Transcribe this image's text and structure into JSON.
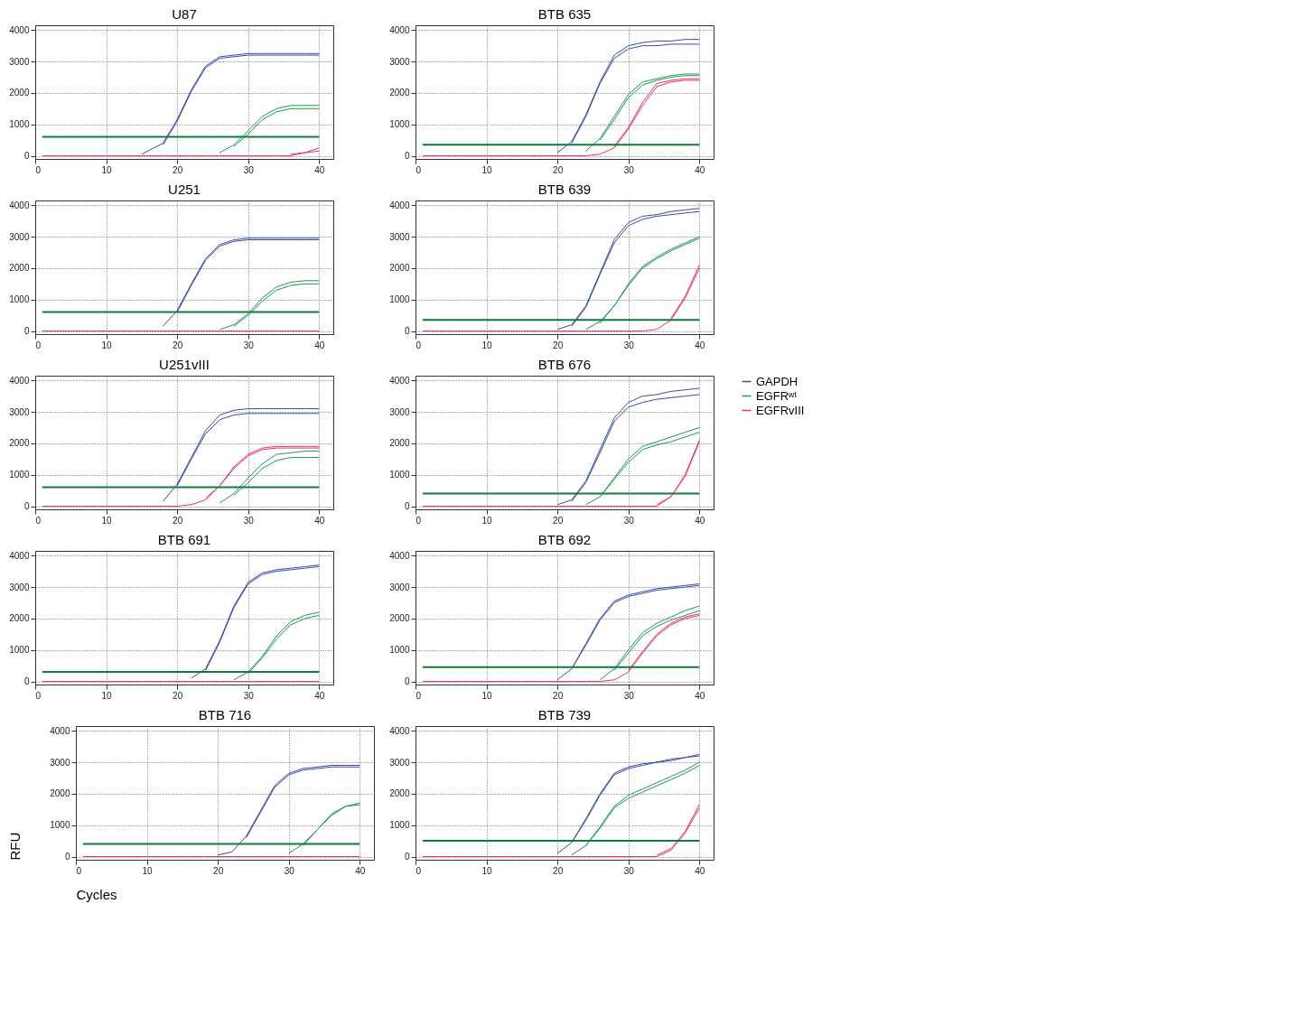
{
  "chart_data": [
    {
      "type": "line",
      "title": "U87",
      "x": [
        1,
        10,
        15,
        18,
        20,
        22,
        24,
        26,
        28,
        30,
        32,
        34,
        36,
        38,
        40
      ],
      "xlim": [
        0,
        42
      ],
      "xticks": [
        0,
        10,
        20,
        30,
        40
      ],
      "ylim": [
        -100,
        4150
      ],
      "yticks": [
        0,
        1000,
        2000,
        3000,
        4000
      ],
      "grid": true,
      "legend": false,
      "ref_lines": [
        {
          "axis": "y",
          "value": 600,
          "color": "#107a3a"
        }
      ],
      "series": [
        {
          "color": "#3a4aa8",
          "values": [
            null,
            null,
            50,
            400,
            1150,
            2100,
            2850,
            3150,
            3200,
            3250,
            3250,
            3250,
            3250,
            3250,
            3250
          ]
        },
        {
          "color": "#3a4aa8",
          "values": [
            null,
            null,
            null,
            350,
            1100,
            2050,
            2800,
            3100,
            3150,
            3200,
            3200,
            3200,
            3200,
            3200,
            3200
          ]
        },
        {
          "color": "#1a9a50",
          "values": [
            null,
            null,
            null,
            null,
            null,
            null,
            null,
            100,
            350,
            800,
            1250,
            1500,
            1600,
            1600,
            1600
          ]
        },
        {
          "color": "#1a9a50",
          "values": [
            null,
            null,
            null,
            null,
            null,
            null,
            null,
            null,
            300,
            700,
            1150,
            1400,
            1500,
            1500,
            1500
          ]
        },
        {
          "color": "#e8326e",
          "values": [
            null,
            null,
            null,
            null,
            null,
            null,
            null,
            null,
            null,
            null,
            null,
            null,
            50,
            100,
            250
          ]
        },
        {
          "color": "#e8326e",
          "values": [
            0,
            0,
            0,
            0,
            0,
            0,
            0,
            0,
            0,
            0,
            0,
            0,
            0,
            100,
            150
          ]
        }
      ]
    },
    {
      "type": "line",
      "title": "BTB 635",
      "x": [
        1,
        10,
        15,
        18,
        20,
        22,
        24,
        26,
        28,
        30,
        32,
        34,
        36,
        38,
        40
      ],
      "xlim": [
        0,
        42
      ],
      "xticks": [
        0,
        10,
        20,
        30,
        40
      ],
      "ylim": [
        -100,
        4150
      ],
      "yticks": [
        0,
        1000,
        2000,
        3000,
        4000
      ],
      "grid": true,
      "legend": false,
      "ref_lines": [
        {
          "axis": "y",
          "value": 350,
          "color": "#107a3a"
        }
      ],
      "series": [
        {
          "color": "#3a4aa8",
          "values": [
            null,
            null,
            null,
            null,
            100,
            450,
            1300,
            2350,
            3200,
            3500,
            3600,
            3650,
            3650,
            3700,
            3700
          ]
        },
        {
          "color": "#3a4aa8",
          "values": [
            null,
            null,
            null,
            null,
            null,
            400,
            1250,
            2300,
            3100,
            3400,
            3500,
            3500,
            3550,
            3550,
            3550
          ]
        },
        {
          "color": "#1a9a50",
          "values": [
            null,
            null,
            null,
            null,
            null,
            null,
            150,
            550,
            1250,
            1950,
            2350,
            2450,
            2550,
            2600,
            2600
          ]
        },
        {
          "color": "#1a9a50",
          "values": [
            null,
            null,
            null,
            null,
            null,
            null,
            null,
            500,
            1150,
            1850,
            2250,
            2400,
            2500,
            2550,
            2550
          ]
        },
        {
          "color": "#e8326e",
          "values": [
            null,
            null,
            null,
            null,
            null,
            null,
            null,
            null,
            300,
            900,
            1700,
            2300,
            2400,
            2450,
            2450
          ]
        },
        {
          "color": "#e8326e",
          "values": [
            0,
            0,
            0,
            0,
            0,
            0,
            0,
            50,
            250,
            850,
            1600,
            2200,
            2350,
            2400,
            2400
          ]
        }
      ]
    },
    {
      "type": "line",
      "title": "U251",
      "x": [
        1,
        10,
        15,
        18,
        20,
        22,
        24,
        26,
        28,
        30,
        32,
        34,
        36,
        38,
        40
      ],
      "xlim": [
        0,
        42
      ],
      "xticks": [
        0,
        10,
        20,
        30,
        40
      ],
      "ylim": [
        -100,
        4150
      ],
      "yticks": [
        0,
        1000,
        2000,
        3000,
        4000
      ],
      "grid": true,
      "legend": false,
      "ref_lines": [
        {
          "axis": "y",
          "value": 600,
          "color": "#107a3a"
        }
      ],
      "series": [
        {
          "color": "#3a4aa8",
          "values": [
            null,
            null,
            null,
            150,
            650,
            1500,
            2300,
            2750,
            2900,
            2950,
            2950,
            2950,
            2950,
            2950,
            2950
          ]
        },
        {
          "color": "#3a4aa8",
          "values": [
            null,
            null,
            null,
            null,
            600,
            1450,
            2250,
            2700,
            2850,
            2900,
            2900,
            2900,
            2900,
            2900,
            2900
          ]
        },
        {
          "color": "#1a9a50",
          "values": [
            null,
            null,
            null,
            null,
            null,
            null,
            null,
            50,
            200,
            550,
            1050,
            1400,
            1550,
            1600,
            1600
          ]
        },
        {
          "color": "#1a9a50",
          "values": [
            null,
            null,
            null,
            null,
            null,
            null,
            null,
            null,
            150,
            500,
            950,
            1300,
            1450,
            1500,
            1500
          ]
        },
        {
          "color": "#e8326e",
          "values": [
            0,
            0,
            0,
            0,
            0,
            0,
            0,
            0,
            0,
            0,
            0,
            0,
            0,
            0,
            0
          ]
        }
      ]
    },
    {
      "type": "line",
      "title": "BTB 639",
      "x": [
        1,
        10,
        15,
        18,
        20,
        22,
        24,
        26,
        28,
        30,
        32,
        34,
        36,
        38,
        40
      ],
      "xlim": [
        0,
        42
      ],
      "xticks": [
        0,
        10,
        20,
        30,
        40
      ],
      "ylim": [
        -100,
        4150
      ],
      "yticks": [
        0,
        1000,
        2000,
        3000,
        4000
      ],
      "grid": true,
      "legend": false,
      "ref_lines": [
        {
          "axis": "y",
          "value": 350,
          "color": "#107a3a"
        }
      ],
      "series": [
        {
          "color": "#3a4aa8",
          "values": [
            null,
            null,
            null,
            null,
            50,
            200,
            800,
            1850,
            2900,
            3450,
            3650,
            3700,
            3800,
            3850,
            3900
          ]
        },
        {
          "color": "#3a4aa8",
          "values": [
            null,
            null,
            null,
            null,
            null,
            150,
            750,
            1800,
            2800,
            3350,
            3550,
            3650,
            3700,
            3750,
            3800
          ]
        },
        {
          "color": "#1a9a50",
          "values": [
            null,
            null,
            null,
            null,
            null,
            null,
            50,
            300,
            800,
            1500,
            2050,
            2350,
            2600,
            2800,
            3000
          ]
        },
        {
          "color": "#1a9a50",
          "values": [
            null,
            null,
            null,
            null,
            null,
            null,
            null,
            250,
            800,
            1450,
            2000,
            2300,
            2550,
            2750,
            2950
          ]
        },
        {
          "color": "#e8326e",
          "values": [
            null,
            null,
            null,
            null,
            null,
            null,
            null,
            null,
            null,
            null,
            null,
            null,
            400,
            1100,
            2100
          ]
        },
        {
          "color": "#e8326e",
          "values": [
            0,
            0,
            0,
            0,
            0,
            0,
            0,
            0,
            0,
            0,
            0,
            50,
            350,
            1050,
            2000
          ]
        }
      ]
    },
    {
      "type": "line",
      "title": "U251vIII",
      "x": [
        1,
        10,
        15,
        18,
        20,
        22,
        24,
        26,
        28,
        30,
        32,
        34,
        36,
        38,
        40
      ],
      "xlim": [
        0,
        42
      ],
      "xticks": [
        0,
        10,
        20,
        30,
        40
      ],
      "ylim": [
        -100,
        4150
      ],
      "yticks": [
        0,
        1000,
        2000,
        3000,
        4000
      ],
      "grid": true,
      "legend": false,
      "ref_lines": [
        {
          "axis": "y",
          "value": 600,
          "color": "#107a3a"
        }
      ],
      "series": [
        {
          "color": "#3a4aa8",
          "values": [
            null,
            null,
            null,
            150,
            700,
            1550,
            2400,
            2900,
            3050,
            3100,
            3100,
            3100,
            3100,
            3100,
            3100
          ]
        },
        {
          "color": "#3a4aa8",
          "values": [
            null,
            null,
            null,
            null,
            650,
            1500,
            2300,
            2750,
            2900,
            2950,
            2950,
            2950,
            2950,
            2950,
            2950
          ]
        },
        {
          "color": "#1a9a50",
          "values": [
            null,
            null,
            null,
            null,
            null,
            null,
            null,
            100,
            400,
            900,
            1350,
            1650,
            1700,
            1750,
            1750
          ]
        },
        {
          "color": "#1a9a50",
          "values": [
            null,
            null,
            null,
            null,
            null,
            null,
            null,
            null,
            350,
            750,
            1200,
            1450,
            1550,
            1550,
            1550
          ]
        },
        {
          "color": "#e8326e",
          "values": [
            null,
            null,
            null,
            null,
            null,
            null,
            250,
            650,
            1250,
            1650,
            1850,
            1900,
            1900,
            1900,
            1900
          ]
        },
        {
          "color": "#e8326e",
          "values": [
            0,
            0,
            0,
            0,
            0,
            50,
            200,
            650,
            1200,
            1600,
            1800,
            1850,
            1850,
            1850,
            1850
          ]
        }
      ]
    },
    {
      "type": "line",
      "title": "BTB 676",
      "x": [
        1,
        10,
        15,
        18,
        20,
        22,
        24,
        26,
        28,
        30,
        32,
        34,
        36,
        38,
        40
      ],
      "xlim": [
        0,
        42
      ],
      "xticks": [
        0,
        10,
        20,
        30,
        40
      ],
      "ylim": [
        -100,
        4150
      ],
      "yticks": [
        0,
        1000,
        2000,
        3000,
        4000
      ],
      "grid": true,
      "legend": "right",
      "ref_lines": [
        {
          "axis": "y",
          "value": 400,
          "color": "#107a3a"
        }
      ],
      "series": [
        {
          "name": "GAPDH",
          "color": "#3a4aa8",
          "values": [
            null,
            null,
            null,
            null,
            50,
            200,
            800,
            1800,
            2800,
            3300,
            3500,
            3550,
            3650,
            3700,
            3750
          ]
        },
        {
          "color": "#3a4aa8",
          "values": [
            null,
            null,
            null,
            null,
            null,
            150,
            750,
            1700,
            2700,
            3150,
            3300,
            3400,
            3450,
            3500,
            3550
          ]
        },
        {
          "name": "EGFRʷᵗ",
          "color": "#1a9a50",
          "values": [
            null,
            null,
            null,
            null,
            null,
            null,
            50,
            300,
            900,
            1500,
            1900,
            2050,
            2200,
            2350,
            2500
          ]
        },
        {
          "color": "#1a9a50",
          "values": [
            null,
            null,
            null,
            null,
            null,
            null,
            null,
            300,
            850,
            1400,
            1800,
            1950,
            2050,
            2200,
            2350
          ]
        },
        {
          "name": "EGFRvIII",
          "color": "#e8326e",
          "values": [
            null,
            null,
            null,
            null,
            null,
            null,
            null,
            null,
            null,
            null,
            null,
            50,
            300,
            1000,
            2100
          ]
        },
        {
          "color": "#e8326e",
          "values": [
            0,
            0,
            0,
            0,
            0,
            0,
            0,
            0,
            0,
            0,
            0,
            0,
            300,
            950,
            2050
          ]
        }
      ]
    },
    {
      "type": "line",
      "title": "BTB 691",
      "x": [
        1,
        10,
        15,
        18,
        20,
        22,
        24,
        26,
        28,
        30,
        32,
        34,
        36,
        38,
        40
      ],
      "xlim": [
        0,
        42
      ],
      "xticks": [
        0,
        10,
        20,
        30,
        40
      ],
      "ylim": [
        -100,
        4150
      ],
      "yticks": [
        0,
        1000,
        2000,
        3000,
        4000
      ],
      "grid": true,
      "legend": false,
      "ref_lines": [
        {
          "axis": "y",
          "value": 300,
          "color": "#107a3a"
        }
      ],
      "series": [
        {
          "color": "#3a4aa8",
          "values": [
            null,
            null,
            null,
            null,
            null,
            100,
            400,
            1300,
            2400,
            3150,
            3450,
            3550,
            3600,
            3650,
            3700
          ]
        },
        {
          "color": "#3a4aa8",
          "values": [
            null,
            null,
            null,
            null,
            null,
            null,
            350,
            1250,
            2350,
            3100,
            3400,
            3500,
            3550,
            3600,
            3650
          ]
        },
        {
          "color": "#1a9a50",
          "values": [
            null,
            null,
            null,
            null,
            null,
            null,
            null,
            null,
            50,
            300,
            800,
            1450,
            1900,
            2100,
            2200
          ]
        },
        {
          "color": "#1a9a50",
          "values": [
            null,
            null,
            null,
            null,
            null,
            null,
            null,
            null,
            null,
            250,
            750,
            1350,
            1800,
            2000,
            2100
          ]
        },
        {
          "color": "#e8326e",
          "values": [
            0,
            0,
            0,
            0,
            0,
            0,
            0,
            0,
            0,
            0,
            0,
            0,
            0,
            0,
            0
          ]
        }
      ]
    },
    {
      "type": "line",
      "title": "BTB 692",
      "x": [
        1,
        10,
        15,
        18,
        20,
        22,
        24,
        26,
        28,
        30,
        32,
        34,
        36,
        38,
        40
      ],
      "xlim": [
        0,
        42
      ],
      "xticks": [
        0,
        10,
        20,
        30,
        40
      ],
      "ylim": [
        -100,
        4150
      ],
      "yticks": [
        0,
        1000,
        2000,
        3000,
        4000
      ],
      "grid": true,
      "legend": false,
      "ref_lines": [
        {
          "axis": "y",
          "value": 450,
          "color": "#107a3a"
        }
      ],
      "series": [
        {
          "color": "#3a4aa8",
          "values": [
            null,
            null,
            null,
            null,
            50,
            400,
            1200,
            2000,
            2550,
            2750,
            2850,
            2950,
            3000,
            3050,
            3100
          ]
        },
        {
          "color": "#3a4aa8",
          "values": [
            null,
            null,
            null,
            null,
            null,
            400,
            1150,
            1950,
            2500,
            2700,
            2800,
            2900,
            2950,
            3000,
            3050
          ]
        },
        {
          "color": "#1a9a50",
          "values": [
            null,
            null,
            null,
            null,
            null,
            null,
            null,
            50,
            400,
            1000,
            1550,
            1850,
            2050,
            2250,
            2400
          ]
        },
        {
          "color": "#1a9a50",
          "values": [
            null,
            null,
            null,
            null,
            null,
            null,
            null,
            null,
            350,
            900,
            1450,
            1750,
            1950,
            2100,
            2250
          ]
        },
        {
          "color": "#e8326e",
          "values": [
            null,
            null,
            null,
            null,
            null,
            null,
            null,
            null,
            null,
            350,
            950,
            1500,
            1850,
            2050,
            2150
          ]
        },
        {
          "color": "#e8326e",
          "values": [
            0,
            0,
            0,
            0,
            0,
            0,
            0,
            0,
            50,
            300,
            900,
            1450,
            1800,
            2000,
            2100
          ]
        }
      ]
    },
    {
      "type": "line",
      "title": "BTB 716",
      "xlabel": "Cycles",
      "ylabel": "RFU",
      "x": [
        1,
        10,
        15,
        18,
        20,
        22,
        24,
        26,
        28,
        30,
        32,
        34,
        36,
        38,
        40
      ],
      "xlim": [
        0,
        42
      ],
      "xticks": [
        0,
        10,
        20,
        30,
        40
      ],
      "ylim": [
        -100,
        4150
      ],
      "yticks": [
        0,
        1000,
        2000,
        3000,
        4000
      ],
      "grid": true,
      "legend": false,
      "ref_lines": [
        {
          "axis": "y",
          "value": 400,
          "color": "#107a3a"
        }
      ],
      "series": [
        {
          "color": "#3a4aa8",
          "values": [
            null,
            null,
            null,
            null,
            50,
            150,
            650,
            1450,
            2250,
            2650,
            2800,
            2850,
            2900,
            2900,
            2900
          ]
        },
        {
          "color": "#3a4aa8",
          "values": [
            null,
            null,
            null,
            null,
            null,
            null,
            600,
            1400,
            2200,
            2600,
            2750,
            2800,
            2850,
            2850,
            2850
          ]
        },
        {
          "color": "#1a9a50",
          "values": [
            null,
            null,
            null,
            null,
            null,
            null,
            null,
            null,
            null,
            100,
            400,
            850,
            1350,
            1600,
            1700
          ]
        },
        {
          "color": "#1a9a50",
          "values": [
            null,
            null,
            null,
            null,
            null,
            null,
            null,
            null,
            null,
            null,
            350,
            850,
            1300,
            1600,
            1650
          ]
        },
        {
          "color": "#e8326e",
          "values": [
            0,
            0,
            0,
            0,
            0,
            0,
            0,
            0,
            0,
            0,
            0,
            0,
            0,
            0,
            0
          ]
        }
      ]
    },
    {
      "type": "line",
      "title": "BTB 739",
      "x": [
        1,
        10,
        15,
        18,
        20,
        22,
        24,
        26,
        28,
        30,
        32,
        34,
        36,
        38,
        40
      ],
      "xlim": [
        0,
        42
      ],
      "xticks": [
        0,
        10,
        20,
        30,
        40
      ],
      "ylim": [
        -100,
        4150
      ],
      "yticks": [
        0,
        1000,
        2000,
        3000,
        4000
      ],
      "grid": true,
      "legend": false,
      "ref_lines": [
        {
          "axis": "y",
          "value": 500,
          "color": "#107a3a"
        }
      ],
      "series": [
        {
          "color": "#3a4aa8",
          "values": [
            null,
            null,
            null,
            null,
            100,
            450,
            1200,
            2000,
            2650,
            2850,
            2950,
            3000,
            3100,
            3150,
            3250
          ]
        },
        {
          "color": "#3a4aa8",
          "values": [
            null,
            null,
            null,
            null,
            null,
            450,
            1150,
            1950,
            2600,
            2800,
            2900,
            3000,
            3050,
            3150,
            3200
          ]
        },
        {
          "color": "#1a9a50",
          "values": [
            null,
            null,
            null,
            null,
            null,
            50,
            350,
            950,
            1600,
            1950,
            2150,
            2350,
            2550,
            2750,
            3000
          ]
        },
        {
          "color": "#1a9a50",
          "values": [
            null,
            null,
            null,
            null,
            null,
            null,
            350,
            900,
            1550,
            1850,
            2050,
            2250,
            2450,
            2650,
            2900
          ]
        },
        {
          "color": "#e8326e",
          "values": [
            null,
            null,
            null,
            null,
            null,
            null,
            null,
            null,
            null,
            null,
            null,
            50,
            250,
            800,
            1650
          ]
        },
        {
          "color": "#e8326e",
          "values": [
            0,
            0,
            0,
            0,
            0,
            0,
            0,
            0,
            0,
            0,
            0,
            0,
            200,
            750,
            1550
          ]
        }
      ]
    }
  ]
}
